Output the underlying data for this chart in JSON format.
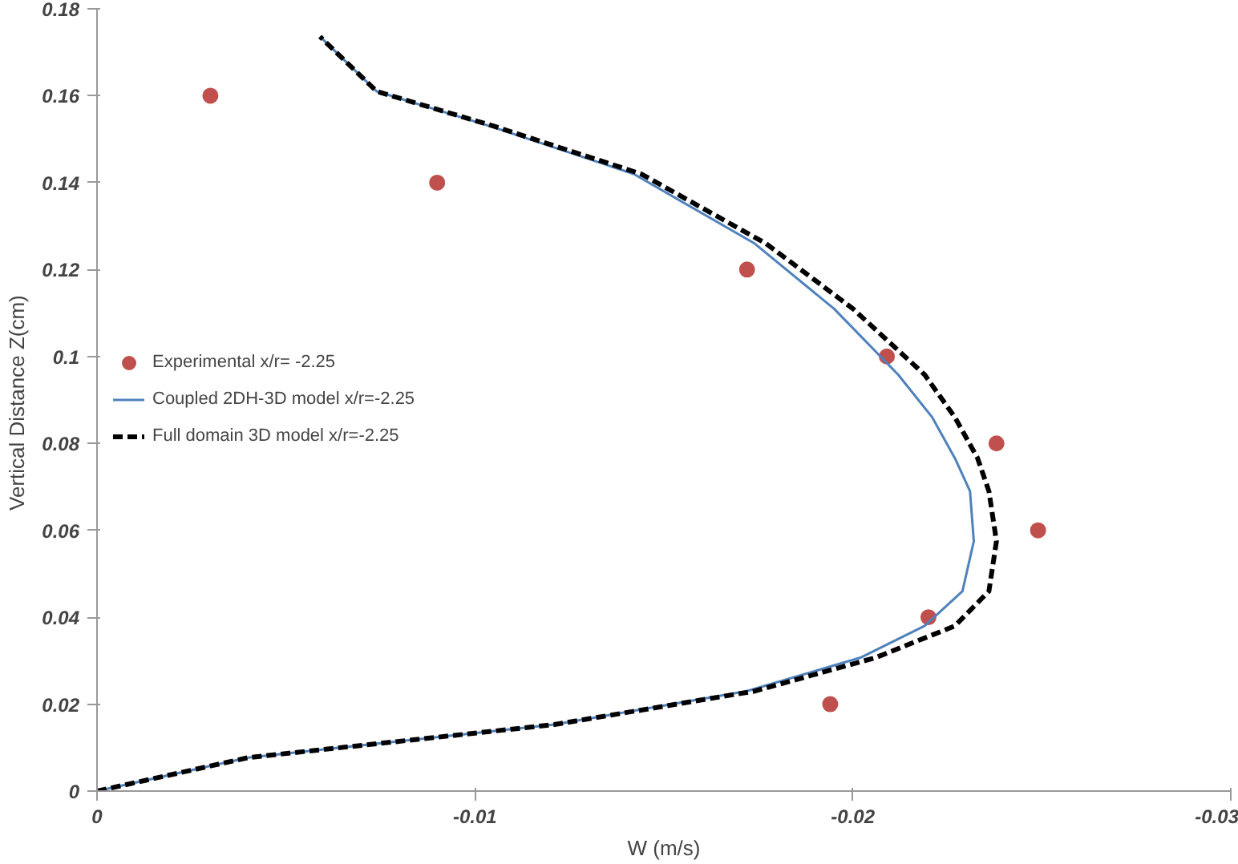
{
  "chart_data": {
    "type": "line",
    "xlabel": "W (m/s)",
    "ylabel": "Vertical Distance  Z(cm)",
    "xlim": [
      0,
      -0.03
    ],
    "xticks": [
      0,
      -0.01,
      -0.02,
      -0.03
    ],
    "ylim": [
      0,
      0.18
    ],
    "yticks": [
      0,
      0.02,
      0.04,
      0.06,
      0.08,
      0.1,
      0.12,
      0.14,
      0.16,
      0.18
    ],
    "grid": false,
    "legend": "left",
    "series": [
      {
        "name": "Experimental x/r= -2.25",
        "type": "scatter",
        "marker": "circle",
        "color": "#c0504d",
        "x": [
          -0.003,
          -0.009,
          -0.0172,
          -0.0209,
          -0.0238,
          -0.0249,
          -0.022,
          -0.0194
        ],
        "values": [
          0.16,
          0.14,
          0.12,
          0.1,
          0.08,
          0.06,
          0.04,
          0.02
        ]
      },
      {
        "name": "Coupled 2DH-3D model x/r=-2.25",
        "line_style": "solid",
        "color": "#4f81bd",
        "x": [
          0,
          -0.004,
          -0.0121,
          -0.0172,
          -0.0202,
          -0.0219,
          -0.0229,
          -0.0232,
          -0.0231,
          -0.0227,
          -0.0221,
          -0.0212,
          -0.0195,
          -0.0174,
          -0.0142,
          -0.0104,
          -0.0074,
          -0.0059
        ],
        "values": [
          0,
          0.0077,
          0.0153,
          0.023,
          0.0307,
          0.038,
          0.046,
          0.0575,
          0.069,
          0.0766,
          0.086,
          0.0958,
          0.111,
          0.126,
          0.142,
          0.153,
          0.161,
          0.1736
        ]
      },
      {
        "name": "Full domain 3D model x/r=-2.25",
        "line_style": "dashed",
        "color": "#000000",
        "x": [
          0,
          -0.004,
          -0.0121,
          -0.0174,
          -0.0206,
          -0.0227,
          -0.0236,
          -0.0238,
          -0.0236,
          -0.0233,
          -0.0227,
          -0.0219,
          -0.02,
          -0.0177,
          -0.0144,
          -0.0105,
          -0.0074,
          -0.0059
        ],
        "values": [
          0,
          0.0077,
          0.0153,
          0.023,
          0.0307,
          0.038,
          0.046,
          0.0575,
          0.069,
          0.0766,
          0.086,
          0.0958,
          0.111,
          0.126,
          0.142,
          0.153,
          0.161,
          0.1736
        ]
      }
    ]
  }
}
